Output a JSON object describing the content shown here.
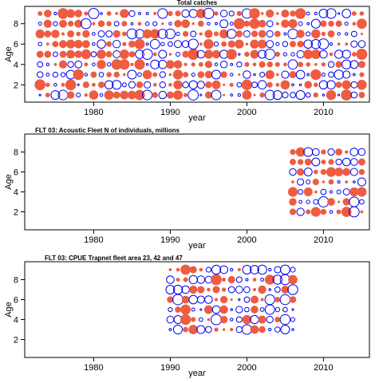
{
  "colors": {
    "positive": "#ee5c42",
    "negative": "#0000ee",
    "frame": "#000000"
  },
  "chart_data": [
    {
      "type": "bubble",
      "title": "Total catches",
      "xlabel": "year",
      "ylabel": "Age",
      "xlim": [
        1971,
        2016
      ],
      "ylim": [
        0.3,
        9.7
      ],
      "xticks": [
        1980,
        1990,
        2000,
        2010
      ],
      "yticks": [
        2,
        4,
        6,
        8
      ],
      "years": [
        1973,
        2015
      ],
      "ages": [
        1,
        9
      ],
      "seed": 7,
      "points": []
    },
    {
      "type": "bubble",
      "title": "FLT 03: Acoustic Fleet   N of individuals, millions",
      "xlabel": "year",
      "ylabel": "Age",
      "xlim": [
        1971,
        2016
      ],
      "ylim": [
        0.2,
        9.8
      ],
      "xticks": [
        1980,
        1990,
        2000,
        2010
      ],
      "yticks": [
        2,
        4,
        6,
        8
      ],
      "years": [
        2006,
        2015
      ],
      "ages": [
        2,
        8
      ],
      "seed": 11,
      "points": []
    },
    {
      "type": "bubble",
      "title": "FLT 03: CPUE Trapnet fleet area 23, 42 and 47",
      "xlabel": "year",
      "ylabel": "Age",
      "xlim": [
        1971,
        2016
      ],
      "ylim": [
        0.2,
        9.8
      ],
      "xticks": [
        1980,
        1990,
        2000,
        2010
      ],
      "yticks": [
        2,
        4,
        6,
        8
      ],
      "years": [
        1990,
        2006
      ],
      "ages": [
        3,
        9
      ],
      "seed": 23,
      "points": []
    }
  ]
}
